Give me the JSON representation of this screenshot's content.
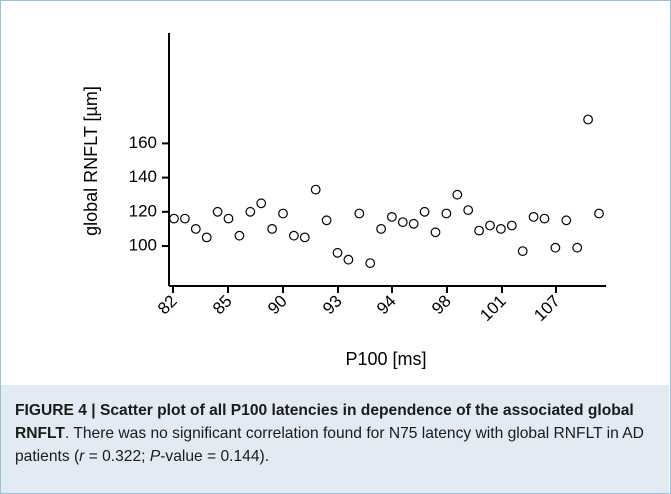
{
  "chart_data": {
    "type": "scatter",
    "xlabel": "P100 [ms]",
    "ylabel": "global RNFLT [µm]",
    "ylim": [
      85,
      175
    ],
    "yticks": [
      100,
      120,
      140,
      160
    ],
    "x_tick_labels": [
      "82",
      "85",
      "90",
      "93",
      "94",
      "98",
      "101",
      "107"
    ],
    "grid": false,
    "points": [
      {
        "x": 82,
        "y": 116
      },
      {
        "x": 82,
        "y": 116
      },
      {
        "x": 82,
        "y": 110
      },
      {
        "x": 82,
        "y": 105
      },
      {
        "x": 85,
        "y": 120
      },
      {
        "x": 85,
        "y": 116
      },
      {
        "x": 85,
        "y": 106
      },
      {
        "x": 85,
        "y": 120
      },
      {
        "x": 90,
        "y": 125
      },
      {
        "x": 90,
        "y": 110
      },
      {
        "x": 90,
        "y": 119
      },
      {
        "x": 90,
        "y": 106
      },
      {
        "x": 90,
        "y": 105
      },
      {
        "x": 93,
        "y": 133
      },
      {
        "x": 93,
        "y": 115
      },
      {
        "x": 93,
        "y": 96
      },
      {
        "x": 93,
        "y": 92
      },
      {
        "x": 93,
        "y": 119
      },
      {
        "x": 93,
        "y": 90
      },
      {
        "x": 94,
        "y": 110
      },
      {
        "x": 94,
        "y": 117
      },
      {
        "x": 94,
        "y": 114
      },
      {
        "x": 94,
        "y": 113
      },
      {
        "x": 94,
        "y": 120
      },
      {
        "x": 98,
        "y": 108
      },
      {
        "x": 98,
        "y": 119
      },
      {
        "x": 98,
        "y": 130
      },
      {
        "x": 98,
        "y": 121
      },
      {
        "x": 101,
        "y": 109
      },
      {
        "x": 101,
        "y": 112
      },
      {
        "x": 101,
        "y": 110
      },
      {
        "x": 101,
        "y": 112
      },
      {
        "x": 107,
        "y": 97
      },
      {
        "x": 107,
        "y": 117
      },
      {
        "x": 107,
        "y": 116
      },
      {
        "x": 107,
        "y": 99
      },
      {
        "x": 107,
        "y": 115
      },
      {
        "x": 107,
        "y": 99
      },
      {
        "x": 107,
        "y": 174
      },
      {
        "x": 107,
        "y": 119
      }
    ]
  },
  "caption": {
    "figure_label": "FIGURE 4 | Scatter plot of all P100 latencies in dependence of the associated global RNFLT",
    "text_main": ". There was no significant correlation found for N75 latency with global RNFLT in AD patients (",
    "r_symbol": "r",
    "r_value": " = 0.322; ",
    "p_symbol": "P",
    "p_value": "-value = 0.144)."
  },
  "colors": {
    "caption_background": "#e2eaf3",
    "frame_border": "#9bbfd8",
    "marker_fill": "#ffffff",
    "marker_stroke": "#000000"
  }
}
